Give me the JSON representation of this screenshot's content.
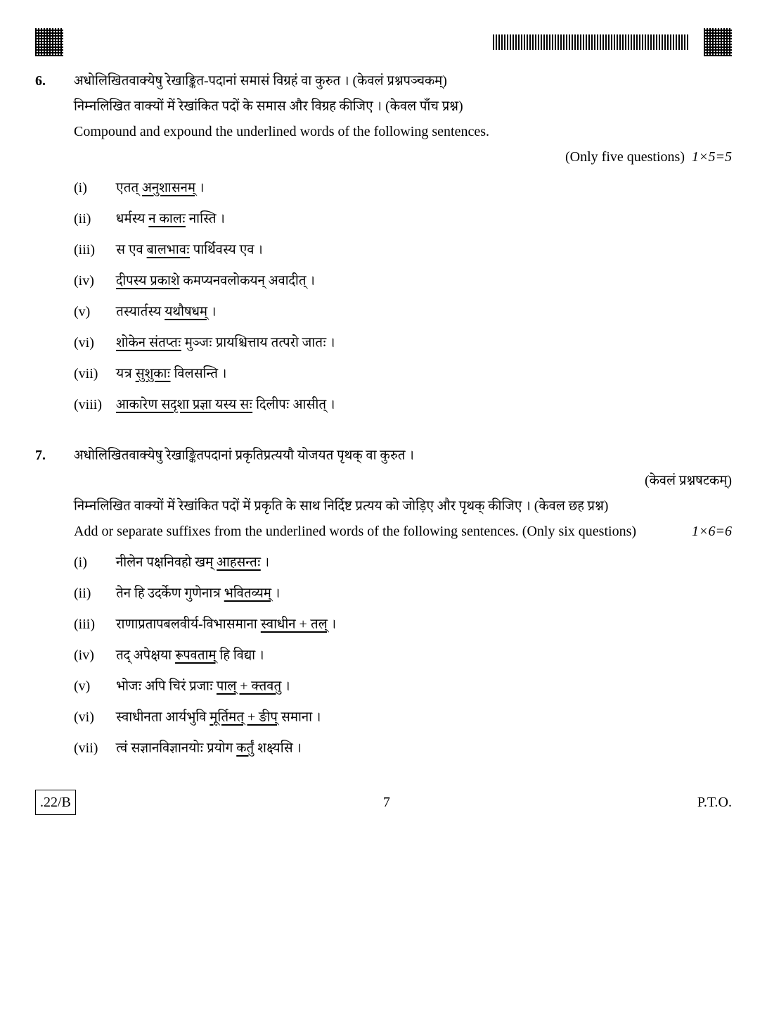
{
  "header": {
    "barcode_present": true
  },
  "q6": {
    "number": "6.",
    "line1": "अधोलिखितवाक्येषु रेखाङ्कित-पदानां समासं विग्रहं वा कुरुत । (केवलं प्रश्नपञ्चकम्)",
    "line2": "निम्नलिखित वाक्यों में रेखांकित पदों के समास और विग्रह कीजिए । (केवल पाँच प्रश्न)",
    "line3": "Compound and expound the underlined words of the following sentences.",
    "note": "(Only five questions)",
    "marks": "1×5=5",
    "items": [
      {
        "label": "(i)",
        "pre": "एतत् ",
        "u": "अनुशासनम्",
        "post": " ।"
      },
      {
        "label": "(ii)",
        "pre": "धर्मस्य ",
        "u": "न कालः",
        "post": " नास्ति ।"
      },
      {
        "label": "(iii)",
        "pre": "स एव ",
        "u": "बालभावः",
        "post": " पार्थिवस्य एव ।"
      },
      {
        "label": "(iv)",
        "pre": "",
        "u": "दीपस्य प्रकाशे",
        "post": " कमप्यनवलोकयन् अवादीत् ।"
      },
      {
        "label": "(v)",
        "pre": "तस्यार्तस्य ",
        "u": "यथौषधम्",
        "post": " ।"
      },
      {
        "label": "(vi)",
        "pre": "",
        "u": "शोकेन संतप्तः",
        "post": " मुञ्जः प्रायश्चित्ताय तत्परो जातः ।"
      },
      {
        "label": "(vii)",
        "pre": "यत्र ",
        "u": "सुशुकाः",
        "post": " विलसन्ति ।"
      },
      {
        "label": "(viii)",
        "pre": "",
        "u": "आकारेण सदृशा प्रज्ञा यस्य सः",
        "post": " दिलीपः आसीत् ।"
      }
    ]
  },
  "q7": {
    "number": "7.",
    "line1": "अधोलिखितवाक्येषु रेखाङ्कितपदानां प्रकृतिप्रत्ययौ योजयत पृथक् वा कुरुत ।",
    "line1_note": "(केवलं प्रश्नषटकम्)",
    "line2": "निम्नलिखित वाक्यों में रेखांकित पदों में प्रकृति के साथ निर्दिष्ट प्रत्यय को जोड़िए और पृथक् कीजिए । (केवल छह प्रश्न)",
    "line3": "Add or separate suffixes from the underlined words of the following sentences. (Only six questions)",
    "marks": "1×6=6",
    "items": [
      {
        "label": "(i)",
        "pre": "नीलेन पक्षनिवहो खम् ",
        "u": "आहसन्तः",
        "post": " ।"
      },
      {
        "label": "(ii)",
        "pre": "तेन हि उदर्केण गुणेनात्र ",
        "u": "भवितव्यम्",
        "post": " ।"
      },
      {
        "label": "(iii)",
        "pre": "राणाप्रतापबलवीर्य-विभासमाना ",
        "u": "स्वाधीन + तल्",
        "post": " ।"
      },
      {
        "label": "(iv)",
        "pre": "तद् अपेक्षया ",
        "u": "रूपवताम्",
        "post": " हि विद्या ।"
      },
      {
        "label": "(v)",
        "pre": "भोजः अपि चिरं प्रजाः ",
        "u": "पाल् + क्तवतु",
        "post": " ।"
      },
      {
        "label": "(vi)",
        "pre": "स्वाधीनता आर्यभुवि ",
        "u": "मूर्तिमत् + ङीप्",
        "post": " समाना ।"
      },
      {
        "label": "(vii)",
        "pre": "त्वं सज्ञानविज्ञानयोः प्रयोग ",
        "u": "कर्तुं",
        "post": " शक्ष्यसि ।"
      }
    ]
  },
  "footer": {
    "code": ".22/B",
    "page": "7",
    "pto": "P.T.O."
  }
}
